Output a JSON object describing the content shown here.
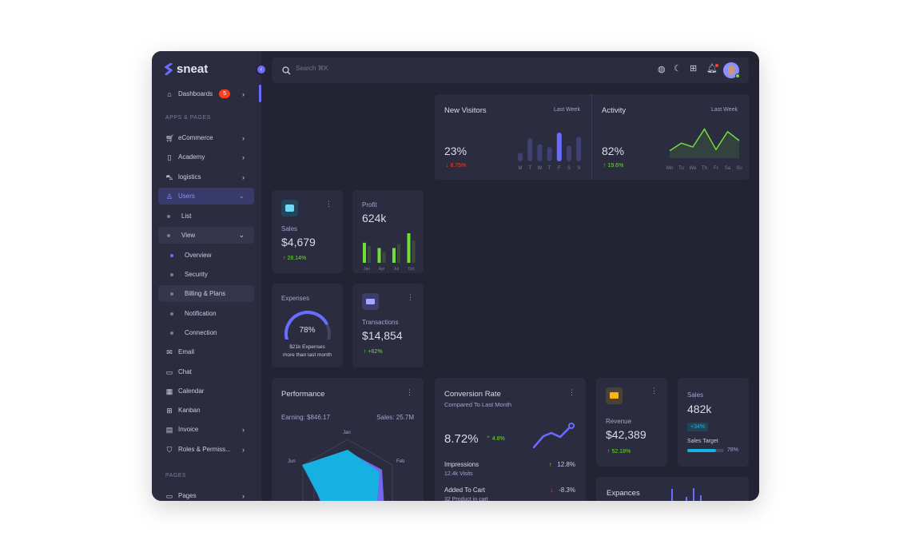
{
  "brand": {
    "name": "sneat",
    "accent": "#696cff"
  },
  "search": {
    "placeholder": "Search ⌘K"
  },
  "sidebar": {
    "dashboards": {
      "label": "Dashboards",
      "badge": "5"
    },
    "section_apps": "APPS & PAGES",
    "items": [
      {
        "label": "eCommerce",
        "icon": "cart-icon",
        "chev": true
      },
      {
        "label": "Academy",
        "icon": "book-icon",
        "chev": true
      },
      {
        "label": "logistics",
        "icon": "car-icon",
        "chev": true
      },
      {
        "label": "Users",
        "icon": "user-icon",
        "chev": "down",
        "active": true
      }
    ],
    "users_sub": [
      {
        "label": "List"
      },
      {
        "label": "View"
      }
    ],
    "view_sub": [
      {
        "label": "Overview",
        "active": true
      },
      {
        "label": "Security"
      },
      {
        "label": "Billing & Plans",
        "hover": true
      },
      {
        "label": "Notification"
      },
      {
        "label": "Connection"
      }
    ],
    "apps": [
      {
        "label": "Email",
        "icon": "mail-icon"
      },
      {
        "label": "Chat",
        "icon": "chat-icon"
      },
      {
        "label": "Calendar",
        "icon": "calendar-icon"
      },
      {
        "label": "Kanban",
        "icon": "grid-icon"
      },
      {
        "label": "Invoice",
        "icon": "file-icon",
        "chev": true
      },
      {
        "label": "Roles & Permiss...",
        "icon": "shield-icon",
        "chev": true
      }
    ],
    "section_pages": "PAGES",
    "pages": {
      "label": "Pages",
      "icon": "window-icon"
    }
  },
  "new_visitors": {
    "title": "New Visitors",
    "period": "Last Week",
    "value": "23%",
    "change": "8.75%",
    "days": [
      "M",
      "T",
      "W",
      "T",
      "F",
      "S",
      "S"
    ],
    "bars": [
      30,
      80,
      60,
      50,
      100,
      55,
      85
    ]
  },
  "activity": {
    "title": "Activity",
    "period": "Last Week",
    "value": "82%",
    "change": "19.6%",
    "days": [
      "Mo",
      "Tu",
      "We",
      "Th",
      "Fr",
      "Sa",
      "Su"
    ],
    "line": [
      10,
      40,
      25,
      95,
      15,
      85,
      50
    ]
  },
  "sales_card": {
    "label": "Sales",
    "value": "$4,679",
    "change": "28.14%"
  },
  "profit": {
    "label": "Profit",
    "value": "624k",
    "months": [
      "Jan",
      "Apr",
      "Jul",
      "Oct"
    ],
    "current": [
      68,
      50,
      50,
      100
    ],
    "previous": [
      57,
      37,
      63,
      75
    ]
  },
  "expenses": {
    "label": "Expenses",
    "percent": 78,
    "percent_label": "78%",
    "line1": "$21k Expenses",
    "line2": "more than last month"
  },
  "transactions": {
    "label": "Transactions",
    "value": "$14,854",
    "change": "+62%"
  },
  "performance": {
    "title": "Performance",
    "earning": "Earning: $846.17",
    "sales": "Sales: 25.7M",
    "axes": [
      "Jan",
      "Feb",
      "Jun"
    ]
  },
  "conversion": {
    "title": "Conversion Rate",
    "subtitle": "Compared To Last Month",
    "value": "8.72%",
    "change": "4.8%",
    "rows": [
      {
        "label": "Impressions",
        "sub": "12.4k Visits",
        "change": "12.8%",
        "dir": "up"
      },
      {
        "label": "Added To Cart",
        "sub": "32 Product in cart",
        "change": "-8.3%",
        "dir": "down"
      }
    ]
  },
  "revenue": {
    "label": "Revenue",
    "value": "$42,389",
    "change": "52.18%"
  },
  "sales2": {
    "label": "Sales",
    "value": "482k",
    "badge": "+34%",
    "target_label": "Sales Target",
    "target": 78,
    "target_text": "78%"
  },
  "expances": {
    "title": "Expances"
  }
}
